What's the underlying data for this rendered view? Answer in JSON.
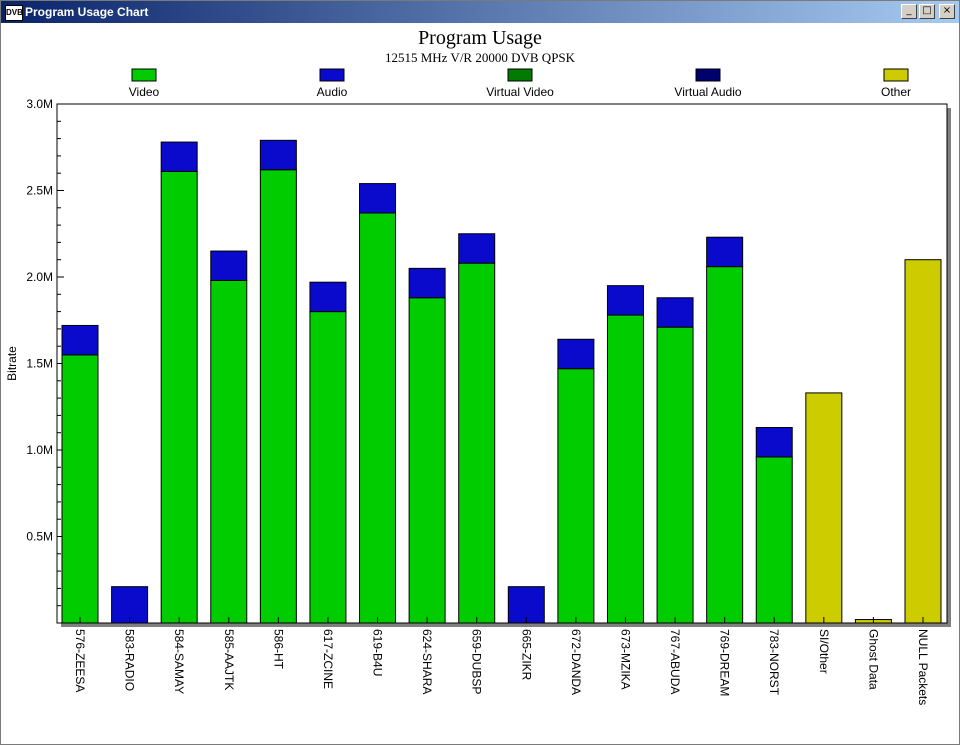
{
  "window": {
    "icon_text": "DVB",
    "title": "Program Usage Chart",
    "controls": {
      "minimize": "_",
      "maximize": "□",
      "close": "×"
    }
  },
  "chart_data": {
    "type": "bar",
    "stacked": true,
    "title": "Program Usage",
    "subtitle": "12515 MHz V/R 20000 DVB QPSK",
    "ylabel": "Bitrate",
    "xlabel": "",
    "ylim": [
      0,
      3000000
    ],
    "yticks": [
      {
        "value": 500000,
        "label": "0.5M"
      },
      {
        "value": 1000000,
        "label": "1.0M"
      },
      {
        "value": 1500000,
        "label": "1.5M"
      },
      {
        "value": 2000000,
        "label": "2.0M"
      },
      {
        "value": 2500000,
        "label": "2.5M"
      },
      {
        "value": 3000000,
        "label": "3.0M"
      }
    ],
    "grid": false,
    "legend_position": "top",
    "categories": [
      "576-ZEESA",
      "583-RADIO",
      "584-SAMAY",
      "585-AAJTK",
      "586-HT",
      "617-ZCINE",
      "619-B4U",
      "624-SHARA",
      "659-DUBSP",
      "665-ZIKR",
      "672-DANDA",
      "673-MZIKA",
      "767-ABUDA",
      "769-DREAM",
      "783-NORST",
      "SI/Other",
      "Ghost Data",
      "NULL Packets"
    ],
    "series": [
      {
        "name": "Video",
        "color": "#00cc00",
        "values": [
          1550000,
          0,
          2610000,
          1980000,
          2620000,
          1800000,
          2370000,
          1880000,
          2080000,
          0,
          1470000,
          1780000,
          1710000,
          2060000,
          960000,
          0,
          0,
          0
        ]
      },
      {
        "name": "Audio",
        "color": "#0a0acc",
        "values": [
          170000,
          210000,
          170000,
          170000,
          170000,
          170000,
          170000,
          170000,
          170000,
          210000,
          170000,
          170000,
          170000,
          170000,
          170000,
          0,
          0,
          0
        ]
      },
      {
        "name": "Virtual Video",
        "color": "#007a00",
        "values": [
          0,
          0,
          0,
          0,
          0,
          0,
          0,
          0,
          0,
          0,
          0,
          0,
          0,
          0,
          0,
          0,
          0,
          0
        ]
      },
      {
        "name": "Virtual Audio",
        "color": "#00006e",
        "values": [
          0,
          0,
          0,
          0,
          0,
          0,
          0,
          0,
          0,
          0,
          0,
          0,
          0,
          0,
          0,
          0,
          0,
          0
        ]
      },
      {
        "name": "Other",
        "color": "#cccc00",
        "values": [
          0,
          0,
          0,
          0,
          0,
          0,
          0,
          0,
          0,
          0,
          0,
          0,
          0,
          0,
          0,
          1330000,
          20000,
          2100000
        ]
      }
    ]
  }
}
